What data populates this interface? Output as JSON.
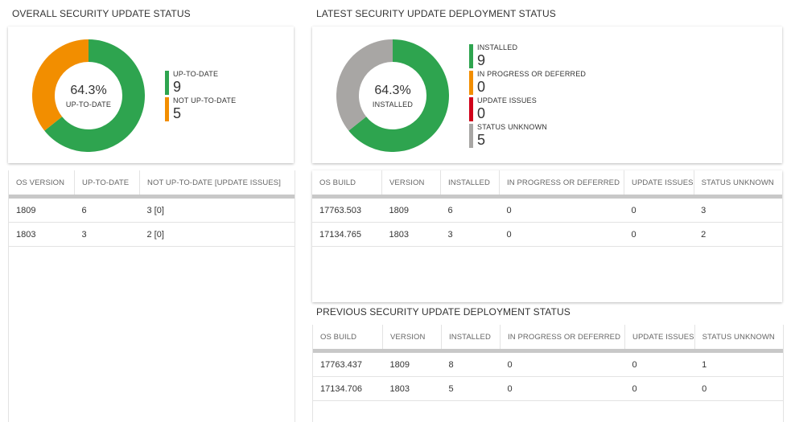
{
  "colors": {
    "green": "#2ea44f",
    "orange": "#f28e00",
    "red": "#d0021b",
    "gray": "#a8a6a4"
  },
  "overall": {
    "title": "OVERALL SECURITY UPDATE STATUS",
    "donut": {
      "percent": "64.3%",
      "label": "UP-TO-DATE",
      "segments": [
        {
          "name": "UP-TO-DATE",
          "value": 9,
          "color": "green"
        },
        {
          "name": "NOT UP-TO-DATE",
          "value": 5,
          "color": "orange"
        }
      ]
    },
    "legend": [
      {
        "label": "UP-TO-DATE",
        "value": "9",
        "color": "green"
      },
      {
        "label": "NOT UP-TO-DATE",
        "value": "5",
        "color": "orange"
      }
    ],
    "table": {
      "headers": [
        "OS VERSION",
        "UP-TO-DATE",
        "NOT UP-TO-DATE [UPDATE ISSUES]"
      ],
      "rows": [
        [
          "1809",
          "6",
          "3 [0]"
        ],
        [
          "1803",
          "3",
          "2 [0]"
        ]
      ]
    }
  },
  "latest": {
    "title": "LATEST SECURITY UPDATE DEPLOYMENT STATUS",
    "donut": {
      "percent": "64.3%",
      "label": "INSTALLED",
      "segments": [
        {
          "name": "INSTALLED",
          "value": 9,
          "color": "green"
        },
        {
          "name": "IN PROGRESS OR DEFERRED",
          "value": 0,
          "color": "orange"
        },
        {
          "name": "UPDATE ISSUES",
          "value": 0,
          "color": "red"
        },
        {
          "name": "STATUS UNKNOWN",
          "value": 5,
          "color": "gray"
        }
      ]
    },
    "legend": [
      {
        "label": "INSTALLED",
        "value": "9",
        "color": "green"
      },
      {
        "label": "IN PROGRESS OR DEFERRED",
        "value": "0",
        "color": "orange"
      },
      {
        "label": "UPDATE ISSUES",
        "value": "0",
        "color": "red"
      },
      {
        "label": "STATUS UNKNOWN",
        "value": "5",
        "color": "gray"
      }
    ],
    "table": {
      "headers": [
        "OS BUILD",
        "VERSION",
        "INSTALLED",
        "IN PROGRESS OR DEFERRED",
        "UPDATE ISSUES",
        "STATUS UNKNOWN"
      ],
      "rows": [
        [
          "17763.503",
          "1809",
          "6",
          "0",
          "0",
          "3"
        ],
        [
          "17134.765",
          "1803",
          "3",
          "0",
          "0",
          "2"
        ]
      ]
    }
  },
  "previous": {
    "title": "PREVIOUS SECURITY UPDATE DEPLOYMENT STATUS",
    "table": {
      "headers": [
        "OS BUILD",
        "VERSION",
        "INSTALLED",
        "IN PROGRESS OR DEFERRED",
        "UPDATE ISSUES",
        "STATUS UNKNOWN"
      ],
      "rows": [
        [
          "17763.437",
          "1809",
          "8",
          "0",
          "0",
          "1"
        ],
        [
          "17134.706",
          "1803",
          "5",
          "0",
          "0",
          "0"
        ]
      ]
    }
  }
}
